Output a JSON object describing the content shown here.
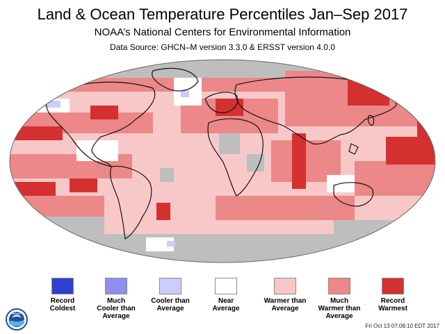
{
  "header": {
    "title": "Land & Ocean Temperature Percentiles Jan–Sep 2017",
    "subtitle": "NOAA’s National Centers for Environmental Information",
    "source": "Data Source: GHCN–M version 3.3.0 & ERSST version 4.0.0"
  },
  "colors": {
    "record_coldest": "#2f3fcf",
    "much_cooler": "#8f8ff0",
    "cooler": "#ccccff",
    "near_average": "#ffffff",
    "warmer": "#f8c8c8",
    "much_warmer": "#ec8888",
    "record_warmest": "#d53030",
    "no_data": "#bebebe",
    "land_outline": "#111111"
  },
  "legend": [
    {
      "key": "record_coldest",
      "label": [
        "Record",
        "Coldest"
      ]
    },
    {
      "key": "much_cooler",
      "label": [
        "Much",
        "Cooler than",
        "Average"
      ]
    },
    {
      "key": "cooler",
      "label": [
        "Cooler than",
        "Average"
      ]
    },
    {
      "key": "near_average",
      "label": [
        "Near",
        "Average"
      ]
    },
    {
      "key": "warmer",
      "label": [
        "Warmer than",
        "Average"
      ]
    },
    {
      "key": "much_warmer",
      "label": [
        "Much",
        "Warmer than",
        "Average"
      ]
    },
    {
      "key": "record_warmest",
      "label": [
        "Record",
        "Warmest"
      ]
    }
  ],
  "footer": {
    "timestamp": "Fri Oct 13 07:08:10 EDT 2017",
    "logo_icon": "noaa-logo-icon",
    "logo_text": "NOAA"
  }
}
